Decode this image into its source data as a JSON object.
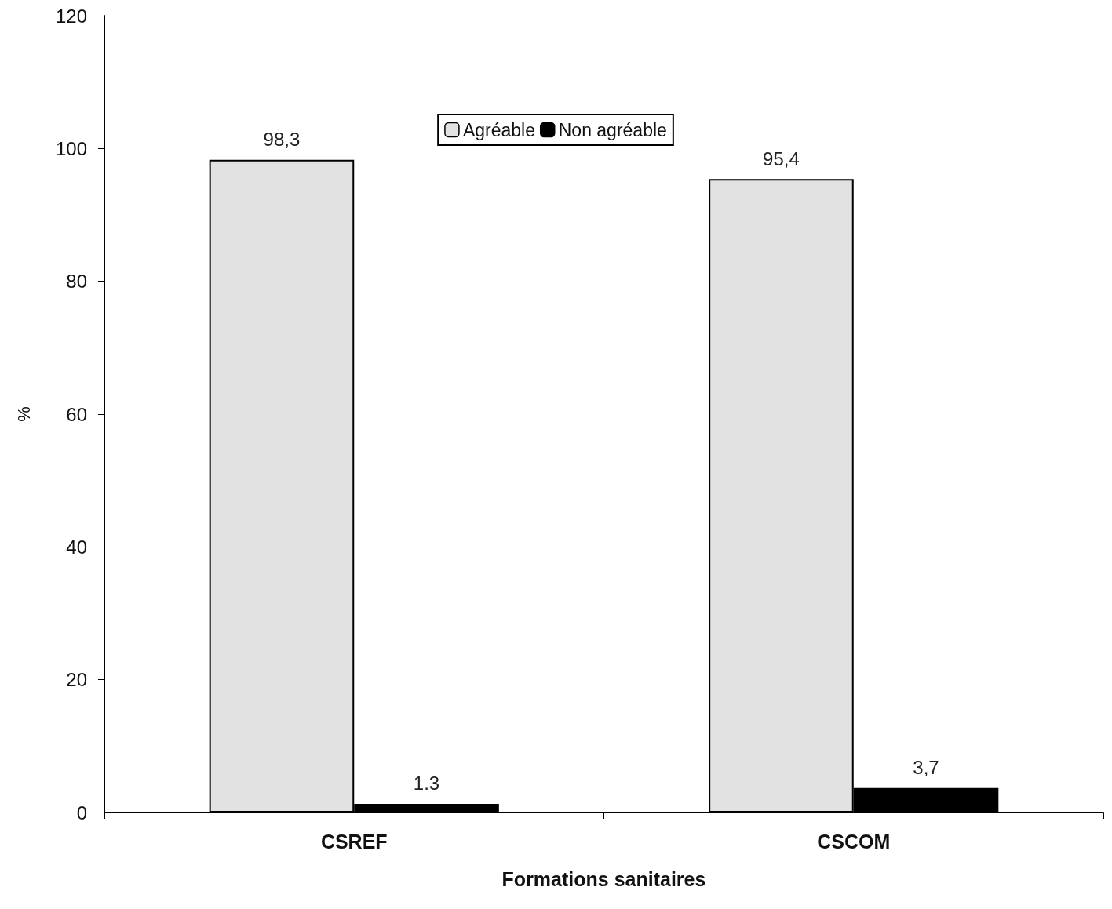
{
  "chart_data": {
    "type": "bar",
    "xlabel": "Formations sanitaires",
    "ylabel": "%",
    "categories": [
      "CSREF",
      "CSCOM"
    ],
    "series": [
      {
        "name": "Agréable",
        "color": "#e2e2e2",
        "values": [
          98.3,
          95.4
        ],
        "value_labels": [
          "98,3",
          "95,4"
        ]
      },
      {
        "name": "Non agréable",
        "color": "#000000",
        "values": [
          1.3,
          3.7
        ],
        "value_labels": [
          "1.3",
          "3,7"
        ]
      }
    ],
    "ylim": [
      0,
      120
    ],
    "yticks": [
      0,
      20,
      40,
      60,
      80,
      100,
      120
    ],
    "grid": false,
    "legend": "top"
  }
}
